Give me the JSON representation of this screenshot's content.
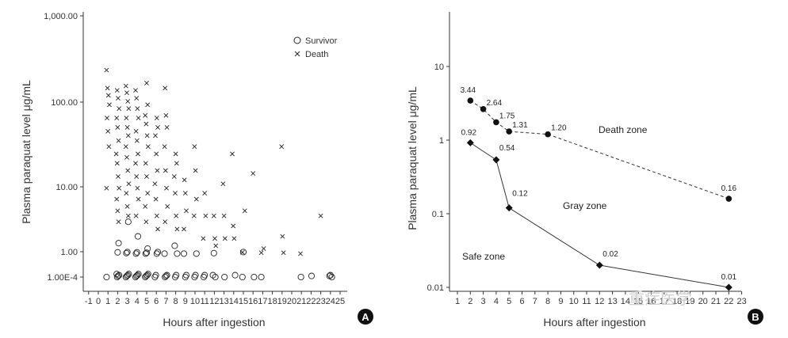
{
  "chart_data": [
    {
      "panel": "A",
      "type": "scatter",
      "ylabel": "Plasma paraquat level μg/mL",
      "xlabel": "Hours after ingestion",
      "x_ticks": [
        "-1",
        "0",
        "1",
        "2",
        "3",
        "4",
        "5",
        "6",
        "7",
        "8",
        "9",
        "10",
        "11",
        "12",
        "13",
        "14",
        "15",
        "16",
        "17",
        "18",
        "19",
        "20",
        "21",
        "22",
        "23",
        "24",
        "25"
      ],
      "y_ticks": [
        "1,000.00",
        "100.00",
        "10.00",
        "1.00",
        "1.00E-4"
      ],
      "legend": [
        {
          "name": "Survivor",
          "marker": "circle"
        },
        {
          "name": "Death",
          "marker": "cross"
        }
      ],
      "legend_position": "top-right",
      "series": [
        {
          "name": "Survivor",
          "marker": "circle",
          "points": [
            [
              1,
              0.0001
            ],
            [
              2,
              0.0001
            ],
            [
              2,
              0.00015
            ],
            [
              2,
              0.0002
            ],
            [
              2,
              0.0003
            ],
            [
              2,
              0.8
            ],
            [
              2,
              1.3
            ],
            [
              3,
              0.0001
            ],
            [
              3,
              0.00015
            ],
            [
              3,
              0.0002
            ],
            [
              3,
              0.0003
            ],
            [
              3,
              0.6
            ],
            [
              3,
              0.9
            ],
            [
              3,
              2.5
            ],
            [
              4,
              0.0001
            ],
            [
              4,
              0.00015
            ],
            [
              4,
              0.0002
            ],
            [
              4,
              0.0003
            ],
            [
              4,
              0.5
            ],
            [
              4,
              0.8
            ],
            [
              4,
              1.6
            ],
            [
              5,
              0.0001
            ],
            [
              5,
              0.00015
            ],
            [
              5,
              0.0002
            ],
            [
              5,
              0.0003
            ],
            [
              5,
              0.5
            ],
            [
              5,
              0.7
            ],
            [
              5,
              1.1
            ],
            [
              6,
              0.0001
            ],
            [
              6,
              0.0002
            ],
            [
              6,
              0.5
            ],
            [
              6,
              0.9
            ],
            [
              7,
              0.0001
            ],
            [
              7,
              0.00015
            ],
            [
              7,
              0.0002
            ],
            [
              7,
              0.5
            ],
            [
              8,
              0.0001
            ],
            [
              8,
              0.0002
            ],
            [
              8,
              0.5
            ],
            [
              8,
              1.2
            ],
            [
              9,
              0.0001
            ],
            [
              9,
              0.0002
            ],
            [
              9,
              0.5
            ],
            [
              10,
              0.0001
            ],
            [
              10,
              0.0002
            ],
            [
              10,
              0.5
            ],
            [
              11,
              0.0001
            ],
            [
              11,
              0.0002
            ],
            [
              12,
              0.0001
            ],
            [
              12,
              0.0002
            ],
            [
              12,
              0.6
            ],
            [
              13,
              0.0001
            ],
            [
              14,
              0.0002
            ],
            [
              15,
              0.0001
            ],
            [
              15,
              0.9
            ],
            [
              16,
              0.0001
            ],
            [
              17,
              0.0001
            ],
            [
              21,
              0.0001
            ],
            [
              22,
              0.00015
            ],
            [
              24,
              0.0001
            ],
            [
              24,
              0.00015
            ],
            [
              24,
              0.0002
            ]
          ]
        },
        {
          "name": "Death",
          "marker": "cross",
          "points": [
            [
              1,
              260
            ],
            [
              1,
              150
            ],
            [
              1,
              120
            ],
            [
              1,
              90
            ],
            [
              1,
              60
            ],
            [
              1,
              40
            ],
            [
              1,
              25
            ],
            [
              1,
              7
            ],
            [
              2,
              140
            ],
            [
              2,
              110
            ],
            [
              2,
              80
            ],
            [
              2,
              60
            ],
            [
              2,
              45
            ],
            [
              2,
              30
            ],
            [
              2,
              20
            ],
            [
              2,
              15
            ],
            [
              2,
              10
            ],
            [
              2,
              7
            ],
            [
              2,
              5
            ],
            [
              2,
              3.5
            ],
            [
              2,
              2.5
            ],
            [
              3,
              160
            ],
            [
              3,
              130
            ],
            [
              3,
              100
            ],
            [
              3,
              80
            ],
            [
              3,
              60
            ],
            [
              3,
              45
            ],
            [
              3,
              35
            ],
            [
              3,
              25
            ],
            [
              3,
              18
            ],
            [
              3,
              12
            ],
            [
              3,
              8
            ],
            [
              3,
              6
            ],
            [
              3,
              4
            ],
            [
              3,
              3
            ],
            [
              4,
              140
            ],
            [
              4,
              110
            ],
            [
              4,
              80
            ],
            [
              4,
              60
            ],
            [
              4,
              40
            ],
            [
              4,
              30
            ],
            [
              4,
              20
            ],
            [
              4,
              15
            ],
            [
              4,
              10
            ],
            [
              4,
              7
            ],
            [
              4,
              5
            ],
            [
              4,
              3
            ],
            [
              5,
              175
            ],
            [
              5,
              90
            ],
            [
              5,
              65
            ],
            [
              5,
              50
            ],
            [
              5,
              35
            ],
            [
              5,
              25
            ],
            [
              5,
              15
            ],
            [
              5,
              10
            ],
            [
              5,
              6
            ],
            [
              5,
              4
            ],
            [
              5,
              2.5
            ],
            [
              6,
              60
            ],
            [
              6,
              45
            ],
            [
              6,
              35
            ],
            [
              6,
              20
            ],
            [
              6,
              12
            ],
            [
              6,
              8
            ],
            [
              6,
              5
            ],
            [
              6,
              3
            ],
            [
              6,
              2
            ],
            [
              7,
              150
            ],
            [
              7,
              65
            ],
            [
              7,
              45
            ],
            [
              7,
              25
            ],
            [
              7,
              12
            ],
            [
              7,
              7
            ],
            [
              7,
              4
            ],
            [
              7,
              2.5
            ],
            [
              8,
              20
            ],
            [
              8,
              15
            ],
            [
              8,
              10
            ],
            [
              8,
              6
            ],
            [
              8,
              3
            ],
            [
              8,
              2
            ],
            [
              9,
              9
            ],
            [
              9,
              6
            ],
            [
              9,
              3.5
            ],
            [
              9,
              2
            ],
            [
              10,
              25
            ],
            [
              10,
              12
            ],
            [
              10,
              5
            ],
            [
              10,
              3
            ],
            [
              11,
              6
            ],
            [
              11,
              3
            ],
            [
              11,
              1.5
            ],
            [
              12,
              3
            ],
            [
              12,
              1.5
            ],
            [
              12,
              1.2
            ],
            [
              13,
              8
            ],
            [
              13,
              3
            ],
            [
              13,
              1.5
            ],
            [
              14,
              20
            ],
            [
              14,
              2.2
            ],
            [
              14,
              1.5
            ],
            [
              15,
              3.5
            ],
            [
              15,
              0.8
            ],
            [
              16,
              11
            ],
            [
              17,
              1.1
            ],
            [
              17,
              0.7
            ],
            [
              19,
              25
            ],
            [
              19,
              1.6
            ],
            [
              19,
              0.7
            ],
            [
              21,
              0.5
            ],
            [
              23,
              3
            ]
          ]
        }
      ]
    },
    {
      "panel": "B",
      "type": "line",
      "yscale": "log",
      "ylabel": "Plasma paraquat level μg/mL",
      "xlabel": "Hours after ingestion",
      "x_ticks": [
        "1",
        "2",
        "3",
        "4",
        "5",
        "6",
        "7",
        "8",
        "9",
        "10",
        "11",
        "12",
        "13",
        "14",
        "15",
        "16",
        "17",
        "18",
        "19",
        "20",
        "21",
        "22",
        "23"
      ],
      "y_ticks": [
        "10",
        "1",
        "0.1",
        "0.01"
      ],
      "xlim": [
        1,
        23
      ],
      "ylim": [
        0.008,
        30
      ],
      "series": [
        {
          "name": "upper",
          "style": "dashed",
          "marker": "circle",
          "points": [
            {
              "x": 2,
              "y": 3.44,
              "label": "3.44"
            },
            {
              "x": 3,
              "y": 2.64,
              "label": "2.64"
            },
            {
              "x": 4,
              "y": 1.75,
              "label": "1.75"
            },
            {
              "x": 5,
              "y": 1.31,
              "label": "1.31"
            },
            {
              "x": 8,
              "y": 1.2,
              "label": "1.20"
            },
            {
              "x": 22,
              "y": 0.16,
              "label": "0.16"
            }
          ]
        },
        {
          "name": "lower",
          "style": "solid",
          "marker": "diamond",
          "points": [
            {
              "x": 2,
              "y": 0.92,
              "label": "0.92"
            },
            {
              "x": 4,
              "y": 0.54,
              "label": "0.54"
            },
            {
              "x": 5,
              "y": 0.12,
              "label": "0.12"
            },
            {
              "x": 12,
              "y": 0.02,
              "label": "0.02"
            },
            {
              "x": 22,
              "y": 0.01,
              "label": "0.01"
            }
          ]
        }
      ],
      "zones": [
        "Death zone",
        "Gray zone",
        "Safe zone"
      ]
    }
  ],
  "badges": {
    "a": "A",
    "b": "B"
  },
  "watermark": "重症医学"
}
